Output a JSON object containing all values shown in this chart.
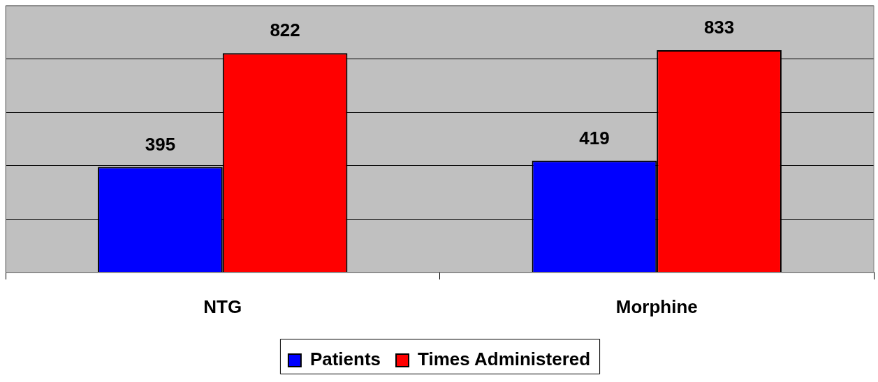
{
  "chart_data": {
    "type": "bar",
    "categories": [
      "NTG",
      "Morphine"
    ],
    "series": [
      {
        "name": "Patients",
        "color": "#0000ff",
        "values": [
          395,
          419
        ]
      },
      {
        "name": "Times Administered",
        "color": "#ff0000",
        "values": [
          822,
          833
        ]
      }
    ],
    "tick_labels": "x",
    "grid": "y",
    "legend": "bottom",
    "data_labels": true
  }
}
